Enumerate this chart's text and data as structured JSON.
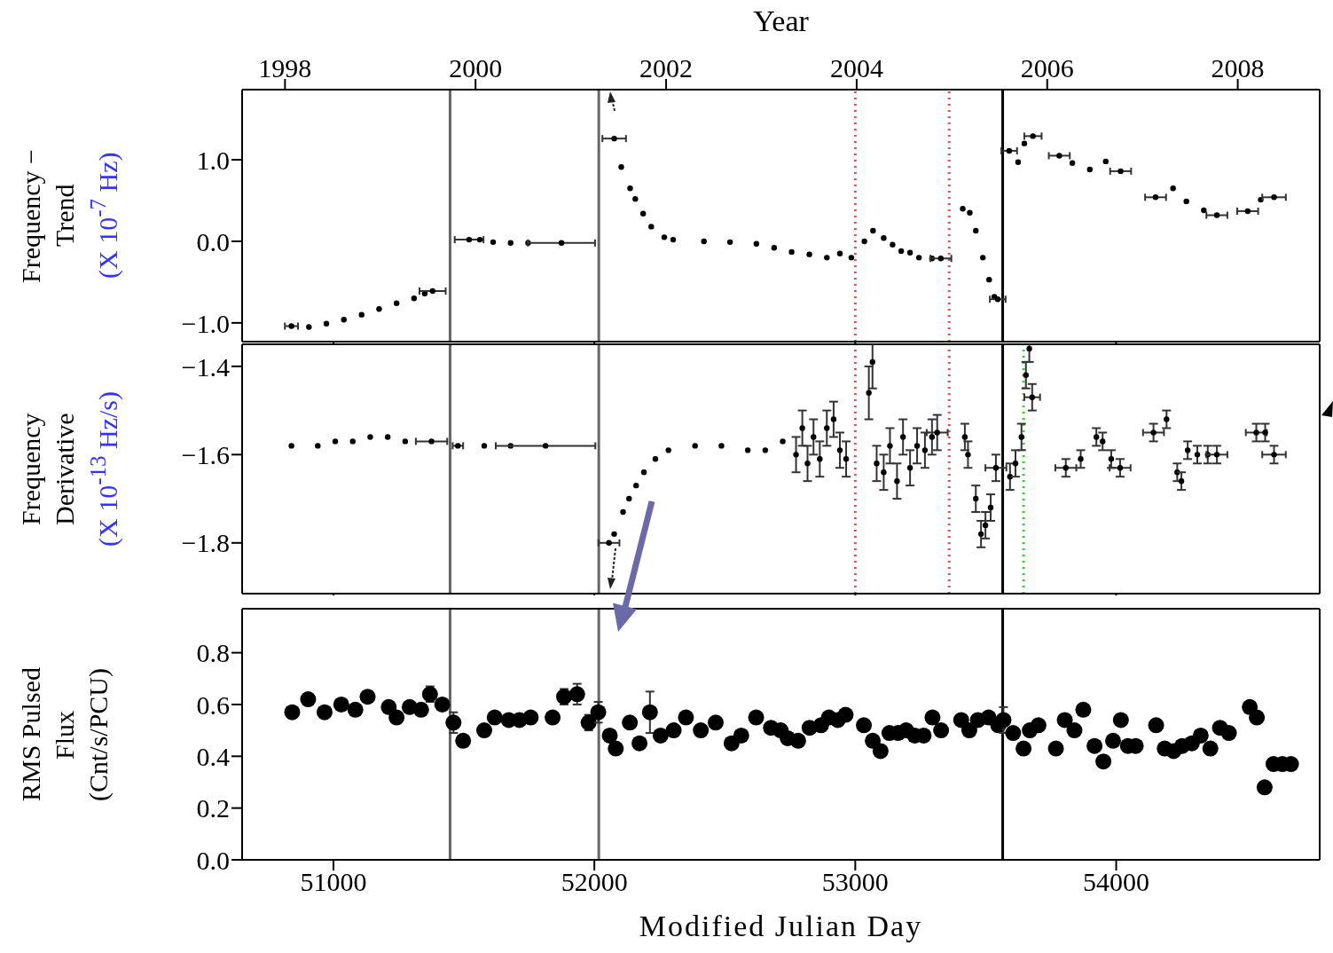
{
  "chart_data": [
    {
      "type": "scatter",
      "ylabel": "Frequency − Trend (X 10$^{-7}$ Hz)",
      "x2label": "Year",
      "marker": "circle",
      "color": "#000000",
      "tick_labels": "y",
      "xlim": [
        50650,
        54780
      ],
      "xticks": [
        51000,
        52000,
        53000,
        54000
      ],
      "x2lim": [
        1997.55,
        2008.86
      ],
      "x2ticks": [
        1998,
        2000,
        2002,
        2004,
        2006,
        2008
      ],
      "ylim": [
        -1.23,
        1.86
      ],
      "yticks": [
        {
          "value": -1,
          "label": "−1.0"
        },
        {
          "value": 0,
          "label": "0.0"
        },
        {
          "value": 1,
          "label": "1.0"
        }
      ],
      "x": [
        50839,
        50906,
        50973,
        51040,
        51108,
        51175,
        51242,
        51309,
        51350,
        51380,
        51520,
        51561,
        51612,
        51679,
        51746,
        51874,
        52076,
        52103,
        52137,
        52157,
        52187,
        52218,
        52268,
        52302,
        52420,
        52520,
        52621,
        52689,
        52756,
        52824,
        52891,
        52941,
        52985,
        53035,
        53068,
        53109,
        53143,
        53176,
        53210,
        53244,
        53294,
        53328,
        53412,
        53439,
        53462,
        53489,
        53513,
        53533,
        53546,
        53590,
        53624,
        53648,
        53681,
        53782,
        53832,
        53899,
        53960,
        54017,
        54151,
        54218,
        54269,
        54336,
        54386,
        54504,
        54554,
        54605
      ],
      "values": [
        -1.04,
        -1.05,
        -1.01,
        -0.96,
        -0.9,
        -0.83,
        -0.76,
        -0.7,
        -0.64,
        -0.61,
        0.02,
        0.02,
        -0.01,
        -0.02,
        -0.02,
        -0.02,
        1.26,
        0.91,
        0.65,
        0.52,
        0.34,
        0.18,
        0.05,
        0.02,
        0.0,
        -0.01,
        -0.03,
        -0.08,
        -0.13,
        -0.16,
        -0.2,
        -0.15,
        -0.2,
        0.0,
        0.13,
        0.04,
        -0.04,
        -0.12,
        -0.14,
        -0.2,
        -0.21,
        -0.21,
        0.4,
        0.35,
        0.13,
        -0.2,
        -0.47,
        -0.68,
        -0.71,
        1.11,
        0.97,
        1.2,
        1.29,
        1.05,
        0.96,
        0.88,
        0.98,
        0.86,
        0.54,
        0.65,
        0.49,
        0.38,
        0.32,
        0.37,
        0.51,
        0.54
      ],
      "xerrors": [
        25,
        null,
        null,
        null,
        null,
        null,
        null,
        null,
        null,
        50,
        55,
        null,
        null,
        null,
        null,
        128,
        45,
        null,
        null,
        null,
        null,
        null,
        null,
        null,
        null,
        null,
        null,
        null,
        null,
        null,
        null,
        null,
        null,
        null,
        null,
        null,
        null,
        null,
        null,
        null,
        null,
        40,
        null,
        null,
        null,
        null,
        null,
        null,
        30,
        30,
        null,
        null,
        33,
        40,
        null,
        null,
        null,
        40,
        40,
        null,
        null,
        null,
        40,
        40,
        null,
        45
      ],
      "ref_lines": [
        {
          "axis": "x",
          "value": 51447,
          "color": "#666666",
          "line_style": "solid"
        },
        {
          "axis": "x",
          "value": 52017,
          "color": "#666666",
          "line_style": "solid"
        },
        {
          "axis": "x",
          "value": 53000,
          "color": "#ff4444",
          "line_style": "dotted"
        },
        {
          "axis": "x",
          "value": 53360,
          "color": "#ff4444",
          "line_style": "dotted"
        },
        {
          "axis": "x",
          "value": 53565,
          "color": "#000000",
          "line_style": "solid"
        }
      ]
    },
    {
      "type": "scatter",
      "ylabel": "Frequency Derivative (X 10$^{-13}$ Hz/s)",
      "marker": "circle",
      "color": "#000000",
      "tick_labels": "y",
      "xlim": [
        50650,
        54780
      ],
      "xticks": [
        51000,
        52000,
        53000,
        54000
      ],
      "ylim": [
        -1.915,
        -1.35
      ],
      "yticks": [
        {
          "value": -1.8,
          "label": "−1.8"
        },
        {
          "value": -1.6,
          "label": "−1.6"
        },
        {
          "value": -1.4,
          "label": "−1.4"
        }
      ],
      "x": [
        50839,
        50940,
        51007,
        51074,
        51141,
        51208,
        51275,
        51376,
        51477,
        51578,
        51679,
        51813,
        52056,
        52076,
        52110,
        52133,
        52160,
        52190,
        52234,
        52284,
        52386,
        52487,
        52588,
        52655,
        52722,
        52773,
        52797,
        52817,
        52840,
        52864,
        52891,
        52917,
        52941,
        52965,
        53052,
        53066,
        53082,
        53109,
        53133,
        53160,
        53183,
        53210,
        53237,
        53267,
        53294,
        53314,
        53420,
        53432,
        53462,
        53482,
        53499,
        53519,
        53539,
        53593,
        53614,
        53637,
        53654,
        53667,
        53678,
        53807,
        53864,
        53924,
        53948,
        53981,
        54015,
        54143,
        54193,
        54234,
        54250,
        54274,
        54311,
        54351,
        54386,
        54537,
        54571,
        54605
      ],
      "values": [
        -1.58,
        -1.58,
        -1.57,
        -1.57,
        -1.56,
        -1.56,
        -1.57,
        -1.57,
        -1.58,
        -1.58,
        -1.58,
        -1.58,
        -1.8,
        -1.78,
        -1.73,
        -1.7,
        -1.67,
        -1.64,
        -1.61,
        -1.59,
        -1.58,
        -1.58,
        -1.59,
        -1.59,
        -1.57,
        -1.6,
        -1.54,
        -1.62,
        -1.56,
        -1.61,
        -1.54,
        -1.52,
        -1.59,
        -1.61,
        -1.46,
        -1.39,
        -1.62,
        -1.64,
        -1.58,
        -1.66,
        -1.56,
        -1.63,
        -1.58,
        -1.59,
        -1.56,
        -1.55,
        -1.56,
        -1.6,
        -1.7,
        -1.78,
        -1.76,
        -1.72,
        -1.63,
        -1.65,
        -1.62,
        -1.56,
        -1.42,
        -1.36,
        -1.47,
        -1.63,
        -1.61,
        -1.56,
        -1.57,
        -1.61,
        -1.63,
        -1.55,
        -1.52,
        -1.64,
        -1.66,
        -1.59,
        -1.6,
        -1.6,
        -1.6,
        -1.55,
        -1.55,
        -1.6
      ],
      "errors": [
        null,
        null,
        null,
        null,
        null,
        null,
        null,
        null,
        null,
        null,
        null,
        null,
        null,
        null,
        null,
        null,
        null,
        null,
        null,
        null,
        null,
        null,
        null,
        null,
        null,
        0.04,
        0.04,
        0.04,
        0.04,
        0.04,
        0.04,
        0.04,
        0.04,
        0.04,
        0.06,
        0.06,
        0.04,
        0.04,
        0.04,
        0.04,
        0.04,
        0.04,
        0.04,
        0.04,
        0.04,
        0.04,
        0.03,
        0.03,
        0.03,
        0.03,
        0.03,
        0.03,
        0.03,
        0.03,
        0.03,
        0.03,
        0.03,
        0.03,
        0.03,
        0.02,
        0.02,
        0.02,
        0.02,
        0.02,
        0.02,
        0.02,
        0.02,
        0.02,
        0.02,
        0.02,
        0.02,
        0.02,
        0.02,
        0.02,
        0.02,
        0.02
      ],
      "xerrors": [
        null,
        null,
        null,
        null,
        null,
        null,
        null,
        60,
        20,
        null,
        null,
        190,
        40,
        null,
        null,
        null,
        null,
        null,
        null,
        null,
        null,
        null,
        null,
        null,
        null,
        null,
        null,
        null,
        null,
        null,
        null,
        null,
        null,
        null,
        null,
        null,
        null,
        null,
        null,
        null,
        null,
        null,
        null,
        null,
        null,
        40,
        null,
        null,
        null,
        null,
        null,
        null,
        40,
        null,
        null,
        null,
        null,
        null,
        30,
        40,
        null,
        null,
        null,
        null,
        40,
        40,
        null,
        null,
        null,
        null,
        null,
        null,
        40,
        40,
        null,
        45
      ],
      "ref_lines": [
        {
          "axis": "x",
          "value": 51447,
          "color": "#666666",
          "line_style": "solid"
        },
        {
          "axis": "x",
          "value": 52017,
          "color": "#666666",
          "line_style": "solid"
        },
        {
          "axis": "x",
          "value": 53000,
          "color": "#ff4444",
          "line_style": "dotted"
        },
        {
          "axis": "x",
          "value": 53360,
          "color": "#ff4444",
          "line_style": "dotted"
        },
        {
          "axis": "x",
          "value": 53565,
          "color": "#000000",
          "line_style": "solid"
        },
        {
          "axis": "x",
          "value": 53645,
          "color": "#22dd22",
          "line_style": "dotted"
        }
      ]
    },
    {
      "type": "scatter",
      "ylabel": "RMS Pulsed Flux (Cnt/s/PCU)",
      "xlabel": "Modified Julian Day",
      "marker": "circle",
      "color": "#000000",
      "xlim": [
        50650,
        54780
      ],
      "xticks": [
        51000,
        52000,
        53000,
        54000
      ],
      "ylim": [
        0,
        0.97
      ],
      "yticks": [
        {
          "value": 0,
          "label": "0.0"
        },
        {
          "value": 0.2,
          "label": "0.2"
        },
        {
          "value": 0.4,
          "label": "0.4"
        },
        {
          "value": 0.6,
          "label": "0.6"
        },
        {
          "value": 0.8,
          "label": "0.8"
        }
      ],
      "x": [
        50842,
        50903,
        50966,
        51030,
        51084,
        51131,
        51212,
        51242,
        51292,
        51336,
        51370,
        51417,
        51460,
        51497,
        51578,
        51618,
        51672,
        51713,
        51756,
        51840,
        51884,
        51934,
        51978,
        52015,
        52059,
        52082,
        52136,
        52173,
        52213,
        52254,
        52304,
        52351,
        52408,
        52465,
        52526,
        52563,
        52620,
        52677,
        52714,
        52741,
        52781,
        52825,
        52869,
        52899,
        52933,
        52963,
        53033,
        53067,
        53097,
        53131,
        53164,
        53195,
        53228,
        53262,
        53296,
        53329,
        53406,
        53437,
        53470,
        53511,
        53548,
        53568,
        53605,
        53645,
        53669,
        53702,
        53769,
        53803,
        53840,
        53874,
        53917,
        53951,
        53988,
        54018,
        54045,
        54075,
        54153,
        54186,
        54220,
        54253,
        54290,
        54324,
        54361,
        54398,
        54432,
        54512,
        54539,
        54569,
        54603,
        54637,
        54670
      ],
      "values": [
        0.57,
        0.62,
        0.57,
        0.6,
        0.58,
        0.63,
        0.59,
        0.55,
        0.59,
        0.58,
        0.64,
        0.6,
        0.53,
        0.46,
        0.5,
        0.55,
        0.54,
        0.54,
        0.55,
        0.55,
        0.63,
        0.64,
        0.53,
        0.57,
        0.48,
        0.43,
        0.53,
        0.45,
        0.57,
        0.48,
        0.5,
        0.55,
        0.5,
        0.53,
        0.45,
        0.48,
        0.55,
        0.51,
        0.5,
        0.47,
        0.46,
        0.51,
        0.52,
        0.55,
        0.54,
        0.56,
        0.52,
        0.46,
        0.42,
        0.49,
        0.49,
        0.5,
        0.48,
        0.48,
        0.55,
        0.5,
        0.54,
        0.5,
        0.54,
        0.55,
        0.52,
        0.54,
        0.49,
        0.43,
        0.5,
        0.52,
        0.43,
        0.54,
        0.5,
        0.58,
        0.44,
        0.38,
        0.46,
        0.54,
        0.44,
        0.44,
        0.52,
        0.43,
        0.42,
        0.44,
        0.45,
        0.48,
        0.43,
        0.51,
        0.49,
        0.59,
        0.55,
        0.28,
        0.37,
        0.37,
        0.37
      ],
      "errors": [
        null,
        null,
        null,
        null,
        null,
        null,
        null,
        null,
        null,
        null,
        0.03,
        null,
        0.04,
        null,
        null,
        null,
        null,
        null,
        null,
        null,
        0.03,
        0.04,
        0.03,
        0.04,
        null,
        null,
        null,
        null,
        0.08,
        null,
        null,
        null,
        null,
        null,
        null,
        null,
        null,
        null,
        null,
        null,
        null,
        null,
        null,
        null,
        null,
        null,
        null,
        null,
        null,
        null,
        null,
        null,
        null,
        null,
        null,
        null,
        null,
        null,
        null,
        null,
        null,
        0.05,
        null,
        null,
        null,
        null,
        null,
        null,
        null,
        null,
        null,
        null,
        null,
        null,
        null,
        null,
        null,
        null,
        null,
        null,
        null,
        null,
        null,
        null,
        null,
        null,
        null,
        null,
        null,
        null,
        null
      ],
      "ref_lines": [
        {
          "axis": "x",
          "value": 51447,
          "color": "#666666",
          "line_style": "solid"
        },
        {
          "axis": "x",
          "value": 52017,
          "color": "#666666",
          "line_style": "solid"
        },
        {
          "axis": "x",
          "value": 53565,
          "color": "#000000",
          "line_style": "solid"
        }
      ]
    }
  ]
}
